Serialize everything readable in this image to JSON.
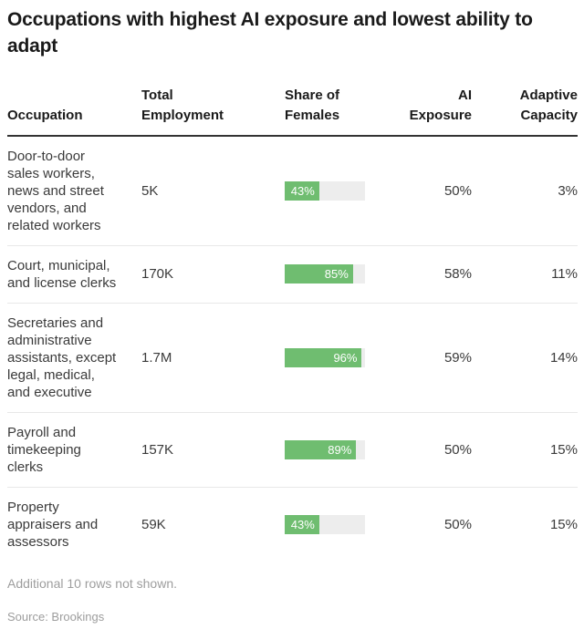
{
  "title": "Occupations with highest AI exposure and lowest ability to adapt",
  "colors": {
    "bar_fill": "#6fbd70",
    "bar_track": "#ededed",
    "header_rule": "#333333",
    "row_divider": "#e8e8e8"
  },
  "table": {
    "headers": {
      "occupation": "Occupation",
      "employment": "Total Employment",
      "females": "Share of Females",
      "exposure": "AI Exposure",
      "capacity": "Adaptive Capacity"
    },
    "rows": [
      {
        "occupation": "Door-to-door sales workers, news and street vendors, and related workers",
        "employment": "5K",
        "females_pct": 43,
        "females_label": "43%",
        "exposure": "50%",
        "capacity": "3%"
      },
      {
        "occupation": "Court, municipal, and license clerks",
        "employment": "170K",
        "females_pct": 85,
        "females_label": "85%",
        "exposure": "58%",
        "capacity": "11%"
      },
      {
        "occupation": "Secretaries and administrative assistants, except legal, medical, and executive",
        "employment": "1.7M",
        "females_pct": 96,
        "females_label": "96%",
        "exposure": "59%",
        "capacity": "14%"
      },
      {
        "occupation": "Payroll and timekeeping clerks",
        "employment": "157K",
        "females_pct": 89,
        "females_label": "89%",
        "exposure": "50%",
        "capacity": "15%"
      },
      {
        "occupation": "Property appraisers and assessors",
        "employment": "59K",
        "females_pct": 43,
        "females_label": "43%",
        "exposure": "50%",
        "capacity": "15%"
      }
    ]
  },
  "footnote": "Additional 10 rows not shown.",
  "source": "Source: Brookings",
  "chart_data": {
    "type": "table",
    "title": "Occupations with highest AI exposure and lowest ability to adapt",
    "columns": [
      "Occupation",
      "Total Employment",
      "Share of Females",
      "AI Exposure",
      "Adaptive Capacity"
    ],
    "rows": [
      [
        "Door-to-door sales workers, news and street vendors, and related workers",
        "5K",
        "43%",
        "50%",
        "3%"
      ],
      [
        "Court, municipal, and license clerks",
        "170K",
        "85%",
        "58%",
        "11%"
      ],
      [
        "Secretaries and administrative assistants, except legal, medical, and executive",
        "1.7M",
        "96%",
        "59%",
        "14%"
      ],
      [
        "Payroll and timekeeping clerks",
        "157K",
        "89%",
        "50%",
        "15%"
      ],
      [
        "Property appraisers and assessors",
        "59K",
        "43%",
        "50%",
        "15%"
      ]
    ],
    "embedded_bars": {
      "column": "Share of Females",
      "values": [
        43,
        85,
        96,
        89,
        43
      ],
      "max": 100,
      "bar_color": "#6fbd70",
      "track_color": "#ededed",
      "label_position": "inside-right"
    },
    "notes": [
      "Additional 10 rows not shown.",
      "Source: Brookings"
    ]
  }
}
